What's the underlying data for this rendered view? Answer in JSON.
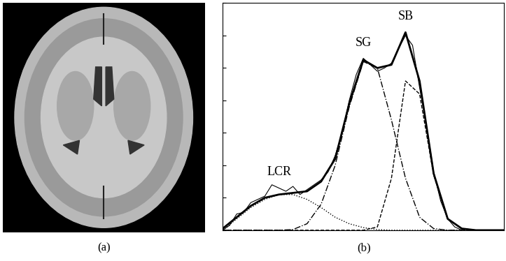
{
  "image_caption": "(a)",
  "chart_caption": "(b)",
  "chart_data": {
    "type": "line",
    "xlim": [
      0,
      100
    ],
    "ylim": [
      0,
      7
    ],
    "xticks": [],
    "yticks": [
      0,
      1,
      2,
      3,
      4,
      5,
      6,
      7
    ],
    "tick_labels": false,
    "grid": false,
    "series": [
      {
        "color": "#000000",
        "line_style": "solid",
        "x": [
          0,
          2.5,
          5,
          7.5,
          10,
          12.5,
          15,
          17.5,
          20,
          22.5,
          25,
          27.5,
          30,
          32.5,
          35,
          37.5,
          40,
          42.5,
          45,
          47.5,
          50,
          52.5,
          55,
          57.5,
          60,
          62.5,
          65,
          67.5,
          70,
          72.5,
          75,
          77.5,
          80,
          82.5,
          85
        ],
        "values": [
          0,
          0.15,
          0.5,
          0.55,
          0.85,
          0.95,
          1.05,
          1.4,
          1.3,
          1.2,
          1.35,
          1.1,
          1.25,
          1.4,
          1.55,
          1.8,
          2.3,
          3.0,
          4.0,
          4.8,
          5.3,
          5.1,
          4.9,
          5.0,
          5.15,
          5.6,
          6.0,
          5.7,
          4.4,
          3.2,
          1.8,
          0.9,
          0.35,
          0.1,
          0
        ]
      },
      {
        "color": "#000000",
        "line_style": "solid",
        "x": [
          0,
          5,
          10,
          15,
          20,
          25,
          30,
          35,
          40,
          45,
          50,
          55,
          60,
          65,
          70,
          75,
          80,
          85,
          90,
          95,
          100
        ],
        "values": [
          0.05,
          0.4,
          0.75,
          1.0,
          1.1,
          1.15,
          1.2,
          1.5,
          2.2,
          3.9,
          5.25,
          5.0,
          5.1,
          6.1,
          4.6,
          1.75,
          0.35,
          0.05,
          0,
          0,
          0
        ]
      },
      {
        "name": "LCR",
        "color": "#000000",
        "line_style": "dotted",
        "x": [
          0,
          5,
          10,
          15,
          20,
          25,
          30,
          35,
          40,
          45,
          50,
          55,
          60,
          65,
          70,
          75,
          80,
          85,
          90,
          95,
          100
        ],
        "values": [
          0,
          0.35,
          0.7,
          0.95,
          1.1,
          1.1,
          0.95,
          0.7,
          0.4,
          0.2,
          0.08,
          0.02,
          0,
          0,
          0,
          0,
          0,
          0,
          0,
          0,
          0
        ]
      },
      {
        "name": "SG",
        "color": "#000000",
        "line_style": "dashdot",
        "x": [
          0,
          5,
          10,
          15,
          20,
          25,
          30,
          35,
          40,
          45,
          50,
          55,
          60,
          65,
          70,
          75,
          80,
          85,
          90,
          95,
          100
        ],
        "values": [
          0,
          0,
          0,
          0,
          0,
          0.02,
          0.2,
          0.8,
          2.0,
          3.8,
          5.2,
          5.0,
          3.4,
          1.6,
          0.4,
          0.05,
          0,
          0,
          0,
          0,
          0
        ]
      },
      {
        "name": "SB",
        "color": "#000000",
        "line_style": "dashed",
        "x": [
          0,
          5,
          10,
          15,
          20,
          25,
          30,
          35,
          40,
          45,
          50,
          55,
          60,
          65,
          70,
          75,
          80,
          85,
          90,
          95,
          100
        ],
        "values": [
          0,
          0,
          0,
          0,
          0,
          0,
          0,
          0,
          0,
          0,
          0,
          0.1,
          1.6,
          4.6,
          4.2,
          1.7,
          0.35,
          0.05,
          0,
          0,
          0
        ]
      }
    ]
  }
}
